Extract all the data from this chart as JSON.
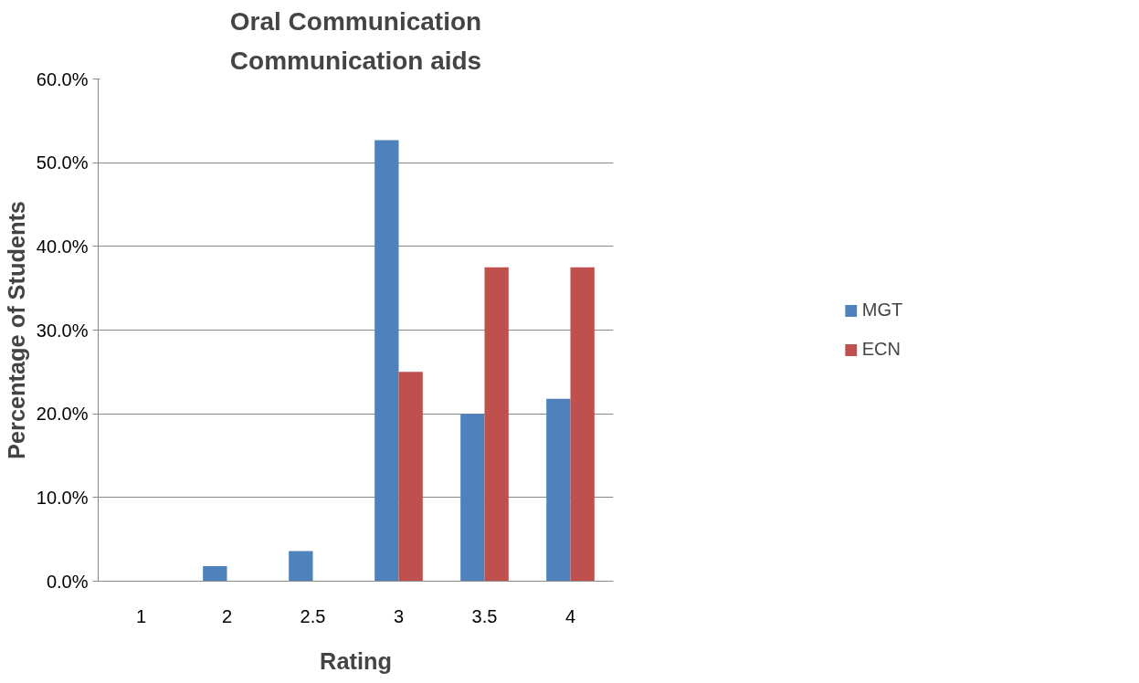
{
  "chart_data": {
    "type": "bar",
    "title": "Oral Communication",
    "subtitle": "Communication aids",
    "xlabel": "Rating",
    "ylabel": "Percentage of Students",
    "categories": [
      "1",
      "2",
      "2.5",
      "3",
      "3.5",
      "4"
    ],
    "series": [
      {
        "name": "MGT",
        "color": "#4f81bd",
        "values": [
          0,
          1.8,
          3.6,
          52.7,
          20.0,
          21.8
        ]
      },
      {
        "name": "ECN",
        "color": "#c0504d",
        "values": [
          0,
          0,
          0,
          25.0,
          37.5,
          37.5
        ]
      }
    ],
    "ylim": [
      0,
      60
    ],
    "yticks": [
      {
        "value": 0,
        "label": "0.0%"
      },
      {
        "value": 10,
        "label": "10.0%"
      },
      {
        "value": 20,
        "label": "20.0%"
      },
      {
        "value": 30,
        "label": "30.0%"
      },
      {
        "value": 40,
        "label": "40.0%"
      },
      {
        "value": 50,
        "label": "50.0%"
      },
      {
        "value": 60,
        "label": "60.0%"
      }
    ],
    "grid": "y",
    "legend": "right"
  }
}
